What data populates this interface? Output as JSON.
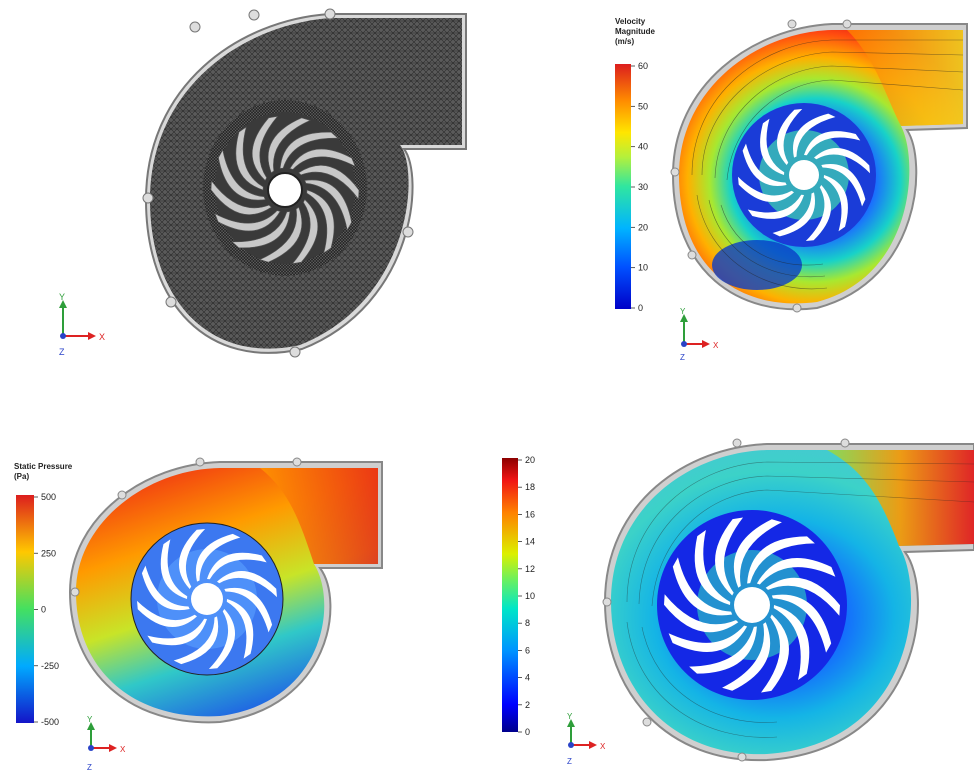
{
  "panels": {
    "mesh": {
      "axes": {
        "y": "Y",
        "x": "X",
        "z": "Z"
      }
    },
    "velocity": {
      "legend": {
        "title_line1": "Velocity",
        "title_line2": "Magnitude",
        "title_line3": "(m/s)",
        "ticks": [
          "60",
          "50",
          "40",
          "30",
          "20",
          "10",
          "0"
        ]
      },
      "axes": {
        "y": "Y",
        "x": "X",
        "z": "Z"
      }
    },
    "pressure": {
      "legend": {
        "title_line1": "Static Pressure",
        "title_line2": "(Pa)",
        "ticks": [
          "500",
          "250",
          "0",
          "-250",
          "-500"
        ]
      },
      "axes": {
        "y": "Y",
        "x": "X",
        "z": "Z"
      }
    },
    "fourth": {
      "legend": {
        "ticks": [
          "20",
          "18",
          "16",
          "14",
          "12",
          "10",
          "8",
          "6",
          "4",
          "2",
          "0"
        ]
      },
      "axes": {
        "y": "Y",
        "x": "X",
        "z": "Z"
      }
    }
  },
  "colors": {
    "jet": [
      "#00007f",
      "#0000ff",
      "#007fff",
      "#00ffff",
      "#7fff7f",
      "#ffff00",
      "#ff7f00",
      "#ff0000",
      "#7f0000"
    ],
    "mesh_dark": "#3a3a3a",
    "casing": "#b8b8b8"
  }
}
